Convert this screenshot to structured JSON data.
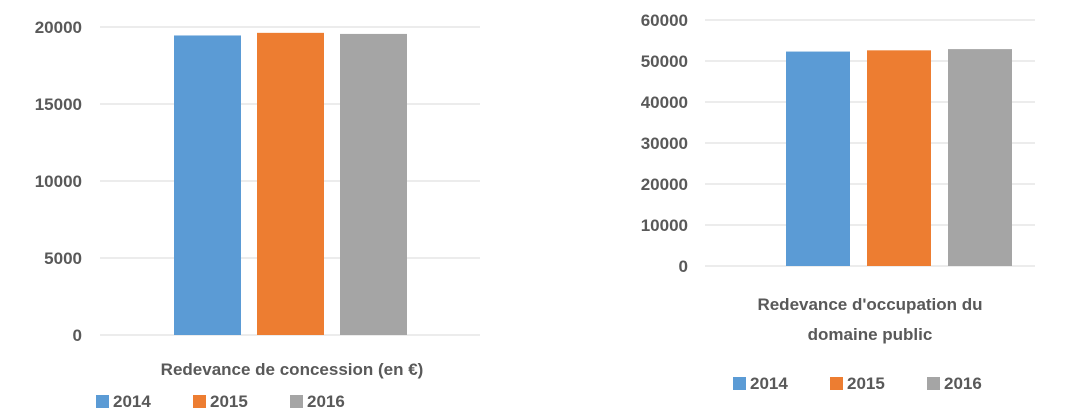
{
  "colors": {
    "s2014": "#5B9BD5",
    "s2015": "#ED7D31",
    "s2016": "#A5A5A5",
    "grid": "#D9D9D9",
    "text": "#595959"
  },
  "chart_data": [
    {
      "type": "bar",
      "categories": [
        "Redevance de concession (en €)"
      ],
      "series": [
        {
          "name": "2014",
          "values": [
            19450
          ]
        },
        {
          "name": "2015",
          "values": [
            19620
          ]
        },
        {
          "name": "2016",
          "values": [
            19550
          ]
        }
      ],
      "yticks": [
        "0",
        "5000",
        "10000",
        "15000",
        "20000"
      ],
      "ylim": [
        0,
        20000
      ],
      "grid": true,
      "legend": "bottom-left"
    },
    {
      "type": "bar",
      "categories": [
        "Redevance d'occupation du domaine public"
      ],
      "category_lines": [
        "Redevance d'occupation du",
        "domaine public"
      ],
      "series": [
        {
          "name": "2014",
          "values": [
            52300
          ]
        },
        {
          "name": "2015",
          "values": [
            52600
          ]
        },
        {
          "name": "2016",
          "values": [
            52900
          ]
        }
      ],
      "yticks": [
        "0",
        "10000",
        "20000",
        "30000",
        "40000",
        "50000",
        "60000"
      ],
      "ylim": [
        0,
        60000
      ],
      "grid": true,
      "legend": "bottom-center"
    }
  ]
}
